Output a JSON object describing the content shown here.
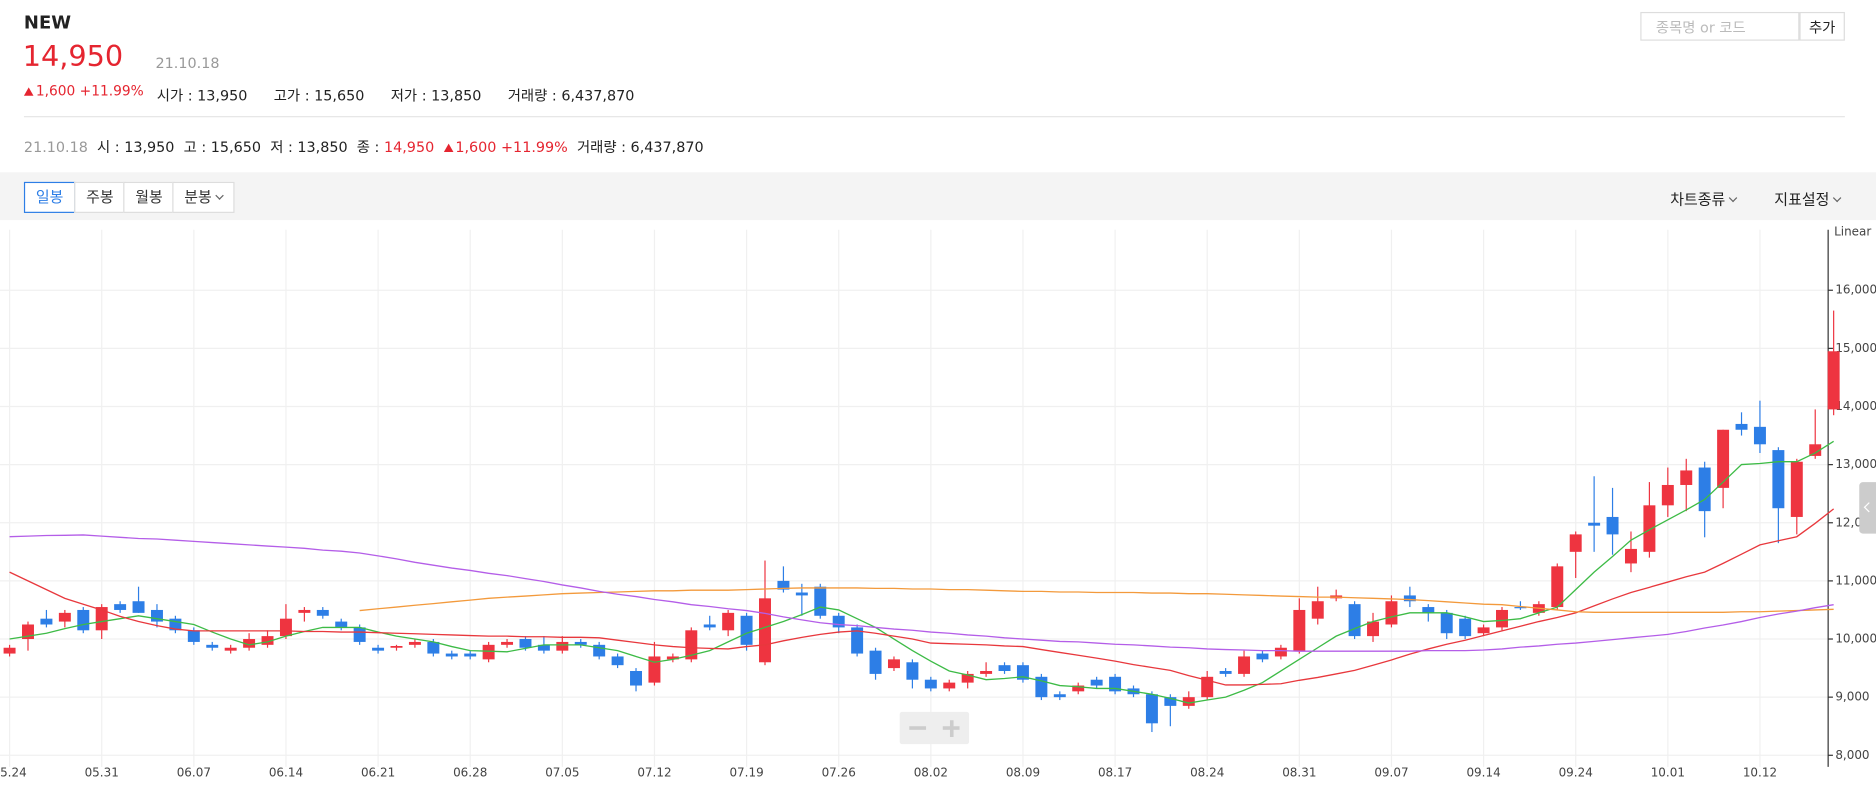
{
  "header": {
    "name": "NEW",
    "price": "14,950",
    "date": "21.10.18",
    "change": "1,600",
    "rate": "+11.99%",
    "stats": [
      {
        "label": "시가 :",
        "value": "13,950"
      },
      {
        "label": "고가 :",
        "value": "15,650"
      },
      {
        "label": "저가 :",
        "value": "13,850"
      },
      {
        "label": "거래량 :",
        "value": "6,437,870"
      }
    ]
  },
  "search": {
    "placeholder": "종목명 or 코드",
    "button": "추가"
  },
  "summary": {
    "date": "21.10.18",
    "items": [
      {
        "label": "시 :",
        "value": "13,950"
      },
      {
        "label": "고 :",
        "value": "15,650"
      },
      {
        "label": "저 :",
        "value": "13,850"
      }
    ],
    "close": {
      "label": "종 :",
      "value": "14,950"
    },
    "change": "1,600",
    "rate": "+11.99%",
    "volume": {
      "label": "거래량 :",
      "value": "6,437,870"
    }
  },
  "toolbar": {
    "periods": [
      "일봉",
      "주봉",
      "월봉",
      "분봉"
    ],
    "selected": 0,
    "menus": [
      "차트종류",
      "지표설정"
    ]
  },
  "chart_data": {
    "type": "candlestick",
    "scale_label": "Linear",
    "up_color": "#ee3440",
    "down_color": "#2d7ee6",
    "grid": true,
    "categories": [
      "05.24",
      null,
      null,
      null,
      null,
      "05.31",
      null,
      null,
      null,
      null,
      "06.07",
      null,
      null,
      null,
      null,
      "06.14",
      null,
      null,
      null,
      null,
      "06.21",
      null,
      null,
      null,
      null,
      "06.28",
      null,
      null,
      null,
      null,
      "07.05",
      null,
      null,
      null,
      null,
      "07.12",
      null,
      null,
      null,
      null,
      "07.19",
      null,
      null,
      null,
      null,
      "07.26",
      null,
      null,
      null,
      null,
      "08.02",
      null,
      null,
      null,
      null,
      "08.09",
      null,
      null,
      null,
      null,
      "08.17",
      null,
      null,
      null,
      null,
      "08.24",
      null,
      null,
      null,
      null,
      "08.31",
      null,
      null,
      null,
      null,
      "09.07",
      null,
      null,
      null,
      null,
      "09.14",
      null,
      null,
      null,
      null,
      "09.24",
      null,
      null,
      null,
      null,
      "10.01",
      null,
      null,
      null,
      null,
      "10.12",
      null,
      null,
      null,
      null
    ],
    "open": [
      9750,
      10000,
      10350,
      10300,
      10500,
      10150,
      10600,
      10650,
      10500,
      10350,
      10150,
      9900,
      9800,
      9850,
      9900,
      10050,
      10450,
      10500,
      10300,
      10200,
      9850,
      9850,
      9900,
      9950,
      9750,
      9750,
      9650,
      9900,
      10000,
      9900,
      9800,
      9950,
      9900,
      9700,
      9450,
      9250,
      9650,
      9650,
      10250,
      10150,
      10400,
      9600,
      11000,
      10800,
      10900,
      10400,
      10200,
      9800,
      9500,
      9600,
      9300,
      9150,
      9250,
      9400,
      9550,
      9550,
      9350,
      9050,
      9100,
      9300,
      9350,
      9150,
      9050,
      9000,
      8850,
      9000,
      9450,
      9400,
      9750,
      9700,
      9800,
      10350,
      10700,
      10600,
      10050,
      10250,
      10750,
      10550,
      10450,
      10350,
      10100,
      10200,
      10550,
      10450,
      10550,
      11500,
      12000,
      12100,
      11300,
      11500,
      12300,
      12650,
      12950,
      12600,
      13700,
      13650,
      13250,
      12100,
      13150,
      13950
    ],
    "high": [
      9900,
      10300,
      10500,
      10500,
      10550,
      10600,
      10650,
      10900,
      10600,
      10400,
      10200,
      9950,
      9900,
      10100,
      10150,
      10600,
      10550,
      10550,
      10350,
      10250,
      9900,
      9900,
      10000,
      10000,
      9800,
      9800,
      9950,
      10000,
      10050,
      10050,
      10050,
      10000,
      9950,
      9750,
      9500,
      9950,
      9750,
      10200,
      10400,
      10500,
      10450,
      11350,
      11250,
      10950,
      10950,
      10450,
      10250,
      9850,
      9700,
      9650,
      9350,
      9300,
      9450,
      9600,
      9600,
      9600,
      9400,
      9100,
      9250,
      9350,
      9400,
      9200,
      9100,
      9050,
      9100,
      9450,
      9500,
      9800,
      9800,
      9900,
      10700,
      10900,
      10850,
      10650,
      10450,
      10750,
      10900,
      10600,
      10500,
      10400,
      10250,
      10550,
      10650,
      10650,
      11300,
      11850,
      12800,
      12600,
      11850,
      12700,
      12950,
      13100,
      13050,
      13600,
      13900,
      14100,
      13300,
      13100,
      13950,
      15650
    ],
    "low": [
      9700,
      9800,
      10200,
      10200,
      10100,
      10000,
      10450,
      10450,
      10200,
      10100,
      9900,
      9800,
      9750,
      9800,
      9850,
      10000,
      10300,
      10350,
      10150,
      9900,
      9750,
      9800,
      9850,
      9700,
      9650,
      9650,
      9600,
      9850,
      9800,
      9750,
      9750,
      9850,
      9650,
      9500,
      9100,
      9200,
      9600,
      9600,
      10150,
      10050,
      9800,
      9550,
      10800,
      10400,
      10350,
      10100,
      9700,
      9300,
      9450,
      9150,
      9100,
      9100,
      9150,
      9350,
      9400,
      9250,
      8950,
      8950,
      9050,
      9150,
      9050,
      9000,
      8400,
      8500,
      8800,
      8950,
      9350,
      9350,
      9600,
      9650,
      9750,
      10250,
      10650,
      10000,
      9950,
      10200,
      10550,
      10300,
      10000,
      10000,
      10050,
      10150,
      10500,
      10400,
      10500,
      11050,
      11500,
      11450,
      11150,
      11400,
      12100,
      12200,
      11750,
      12250,
      13500,
      13200,
      11650,
      11800,
      13100,
      13850
    ],
    "close": [
      9850,
      10250,
      10250,
      10450,
      10150,
      10550,
      10500,
      10450,
      10300,
      10150,
      9950,
      9850,
      9850,
      10000,
      10050,
      10350,
      10500,
      10400,
      10200,
      9950,
      9800,
      9880,
      9950,
      9750,
      9700,
      9700,
      9900,
      9950,
      9850,
      9800,
      9950,
      9900,
      9700,
      9550,
      9200,
      9700,
      9700,
      10150,
      10200,
      10450,
      9900,
      10700,
      10850,
      10750,
      10400,
      10200,
      9750,
      9400,
      9650,
      9300,
      9150,
      9250,
      9400,
      9450,
      9450,
      9300,
      9000,
      9000,
      9200,
      9200,
      9100,
      9050,
      8550,
      8850,
      9000,
      9350,
      9400,
      9700,
      9650,
      9850,
      10500,
      10650,
      10750,
      10050,
      10300,
      10650,
      10650,
      10450,
      10100,
      10050,
      10200,
      10500,
      10530,
      10600,
      11250,
      11800,
      11950,
      11800,
      11550,
      12300,
      12650,
      12900,
      12200,
      13600,
      13600,
      13350,
      12250,
      13050,
      13350,
      14950
    ],
    "series": [
      {
        "color": "#3dbb46",
        "values": [
          10000,
          10050,
          10100,
          10180,
          10250,
          10300,
          10350,
          10400,
          10350,
          10300,
          10250,
          10120,
          10000,
          9900,
          9950,
          10050,
          10130,
          10200,
          10200,
          10200,
          10120,
          10050,
          10000,
          9950,
          9870,
          9800,
          9790,
          9780,
          9840,
          9900,
          9900,
          9900,
          9850,
          9800,
          9700,
          9600,
          9650,
          9720,
          9800,
          9950,
          10100,
          10200,
          10300,
          10420,
          10550,
          10500,
          10350,
          10200,
          10000,
          9800,
          9620,
          9450,
          9380,
          9300,
          9320,
          9350,
          9280,
          9200,
          9180,
          9150,
          9150,
          9100,
          9050,
          8980,
          8900,
          8950,
          9000,
          9120,
          9250,
          9450,
          9650,
          9850,
          10050,
          10180,
          10300,
          10380,
          10450,
          10450,
          10450,
          10380,
          10300,
          10320,
          10350,
          10450,
          10550,
          10850,
          11150,
          11420,
          11700,
          11880,
          12050,
          12220,
          12400,
          12700,
          13000,
          13020,
          13050,
          13050,
          13200,
          13400
        ]
      },
      {
        "color": "#e8383d",
        "values": [
          11150,
          11000,
          10850,
          10700,
          10600,
          10500,
          10390,
          10300,
          10230,
          10170,
          10140,
          10140,
          10140,
          10140,
          10140,
          10140,
          10130,
          10130,
          10120,
          10120,
          10110,
          10100,
          10090,
          10080,
          10070,
          10060,
          10050,
          10050,
          10040,
          10040,
          10030,
          10030,
          10020,
          9980,
          9940,
          9900,
          9870,
          9850,
          9840,
          9830,
          9870,
          9900,
          9970,
          10030,
          10080,
          10120,
          10140,
          10100,
          10050,
          10000,
          9930,
          9920,
          9910,
          9900,
          9880,
          9870,
          9820,
          9770,
          9720,
          9670,
          9620,
          9560,
          9510,
          9460,
          9370,
          9290,
          9210,
          9210,
          9220,
          9230,
          9290,
          9340,
          9400,
          9460,
          9550,
          9640,
          9740,
          9830,
          9910,
          9980,
          10060,
          10140,
          10220,
          10300,
          10370,
          10450,
          10570,
          10690,
          10800,
          10890,
          10980,
          11070,
          11150,
          11300,
          11460,
          11620,
          11690,
          11760,
          11990,
          12240
        ]
      },
      {
        "color": "#f39a3c",
        "values": [
          null,
          null,
          null,
          null,
          null,
          null,
          null,
          null,
          null,
          null,
          null,
          null,
          null,
          null,
          null,
          null,
          null,
          null,
          null,
          10490,
          10520,
          10550,
          10580,
          10610,
          10640,
          10670,
          10700,
          10720,
          10740,
          10760,
          10780,
          10790,
          10800,
          10810,
          10820,
          10830,
          10830,
          10840,
          10840,
          10840,
          10850,
          10860,
          10870,
          10880,
          10880,
          10880,
          10880,
          10870,
          10870,
          10860,
          10860,
          10850,
          10850,
          10840,
          10830,
          10820,
          10820,
          10810,
          10810,
          10800,
          10800,
          10800,
          10790,
          10790,
          10780,
          10780,
          10770,
          10760,
          10750,
          10740,
          10730,
          10720,
          10720,
          10710,
          10700,
          10690,
          10680,
          10660,
          10640,
          10620,
          10600,
          10590,
          10560,
          10530,
          10500,
          10470,
          10460,
          10460,
          10460,
          10460,
          10460,
          10460,
          10460,
          10460,
          10470,
          10470,
          10480,
          10490,
          10500,
          10510
        ]
      },
      {
        "color": "#b45ee8",
        "values": [
          11760,
          11770,
          11780,
          11785,
          11790,
          11770,
          11750,
          11730,
          11720,
          11700,
          11680,
          11660,
          11640,
          11620,
          11600,
          11580,
          11560,
          11530,
          11510,
          11480,
          11430,
          11380,
          11320,
          11270,
          11220,
          11180,
          11130,
          11090,
          11040,
          10990,
          10930,
          10880,
          10820,
          10770,
          10730,
          10680,
          10640,
          10590,
          10560,
          10520,
          10490,
          10440,
          10380,
          10330,
          10280,
          10250,
          10230,
          10200,
          10170,
          10150,
          10120,
          10100,
          10070,
          10050,
          10020,
          10000,
          9980,
          9960,
          9950,
          9930,
          9910,
          9900,
          9880,
          9860,
          9850,
          9830,
          9820,
          9810,
          9800,
          9800,
          9790,
          9790,
          9790,
          9790,
          9790,
          9790,
          9790,
          9800,
          9800,
          9800,
          9810,
          9830,
          9860,
          9880,
          9910,
          9930,
          9960,
          9990,
          10020,
          10050,
          10080,
          10130,
          10190,
          10240,
          10300,
          10370,
          10430,
          10480,
          10540,
          10590
        ]
      }
    ],
    "ylim": [
      7800,
      17000
    ],
    "yticks": [
      {
        "value": 8000,
        "label": "8,000"
      },
      {
        "value": 9000,
        "label": "9,000"
      },
      {
        "value": 10000,
        "label": "10,000"
      },
      {
        "value": 11000,
        "label": "11,000"
      },
      {
        "value": 12000,
        "label": "12,000"
      },
      {
        "value": 13000,
        "label": "13,000"
      },
      {
        "value": 14000,
        "label": "14,000"
      },
      {
        "value": 15000,
        "label": "15,000"
      },
      {
        "value": 16000,
        "label": "16,000"
      }
    ]
  }
}
